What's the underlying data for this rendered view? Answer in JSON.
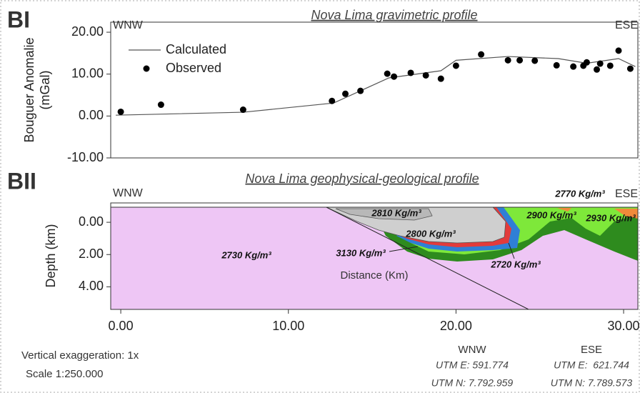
{
  "chart_data": [
    {
      "type": "line",
      "panel": "BI",
      "title": "Nova Lima gravimetric profile",
      "left_label": "WNW",
      "right_label": "ESE",
      "ylabel": [
        "Bouguer Anomalie",
        "(mGal)"
      ],
      "xlim": [
        -0.6,
        30.85
      ],
      "ylim": [
        -10,
        22.4
      ],
      "yticks": [
        {
          "value": 20,
          "label": "20.00"
        },
        {
          "value": 10,
          "label": "10.00"
        },
        {
          "value": 0,
          "label": "0.00"
        },
        {
          "value": -10,
          "label": "-10.00"
        }
      ],
      "legend": "upper left",
      "series": [
        {
          "name": "Calculated",
          "type": "line",
          "color": "#555555",
          "x": [
            -0.3,
            7.3,
            12.7,
            16.0,
            19.1,
            20.0,
            23.1,
            26.1,
            27.8,
            29.7,
            30.7
          ],
          "values": [
            0.2,
            0.9,
            3.1,
            9.1,
            10.8,
            13.3,
            14.2,
            13.7,
            12.6,
            13.7,
            11.8
          ]
        },
        {
          "name": "Observed",
          "type": "scatter",
          "color": "#000000",
          "x": [
            0.0,
            2.4,
            7.3,
            12.6,
            13.4,
            14.3,
            15.9,
            16.3,
            17.3,
            18.2,
            19.1,
            20.0,
            21.5,
            23.1,
            23.8,
            24.7,
            26.0,
            27.0,
            27.6,
            27.8,
            28.4,
            28.6,
            29.2,
            29.7,
            30.4
          ],
          "values": [
            1.0,
            2.7,
            1.5,
            3.6,
            5.3,
            6.0,
            10.1,
            9.4,
            10.3,
            9.7,
            8.9,
            12.0,
            14.7,
            13.3,
            13.3,
            13.2,
            12.1,
            11.8,
            12.0,
            12.8,
            11.1,
            12.5,
            12.0,
            15.6,
            11.3
          ]
        }
      ]
    },
    {
      "type": "cross-section",
      "panel": "BII",
      "title": "Nova Lima geophysical-geological profile",
      "left_label": "WNW",
      "right_label": "ESE",
      "ylabel": "Depth (km)",
      "xlabel": "Distance (Km)",
      "xlim": [
        -0.6,
        30.85
      ],
      "ylim": [
        -1.2,
        5.4
      ],
      "y_inverted": true,
      "xticks": [
        {
          "value": 0,
          "label": "0.00"
        },
        {
          "value": 10,
          "label": "10.00"
        },
        {
          "value": 20,
          "label": "20.00"
        },
        {
          "value": 30,
          "label": "30.00"
        }
      ],
      "yticks": [
        {
          "value": 0,
          "label": "0.00"
        },
        {
          "value": 2,
          "label": "2.00"
        },
        {
          "value": 4,
          "label": "4.00"
        }
      ],
      "annotations": [
        "2810 Kg/m³",
        "2800 Kg/m³",
        "2730 Kg/m³",
        "3130 Kg/m³",
        "2720 Kg/m³",
        "2900 Kg/m³",
        "2930 Kg/m³",
        "2770 Kg/m³"
      ],
      "notes": [
        "Vertical exaggeration: 1x",
        "Scale 1:250.000"
      ],
      "endpoints": [
        {
          "name": "WNW",
          "utm_e": "UTM E: 591.774",
          "utm_n": "UTM N: 7.792.959"
        },
        {
          "name": "ESE",
          "utm_e": "UTM E:  621.744",
          "utm_n": "UTM N: 7.789.573"
        }
      ]
    }
  ]
}
